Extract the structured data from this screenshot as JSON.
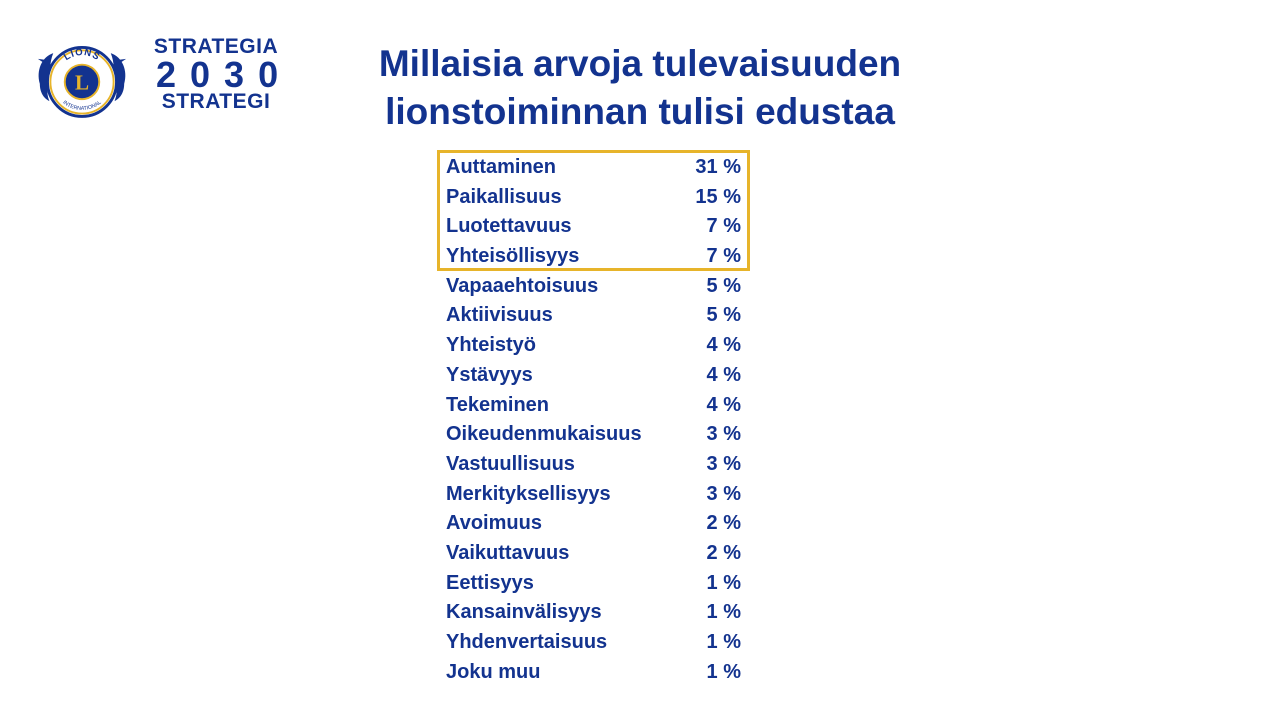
{
  "brand": {
    "logo_text_top": "LIONS",
    "logo_text_bottom": "INTERNATIONAL",
    "logo_letter": "L",
    "colors": {
      "navy": "#13338f",
      "gold": "#e7b42a"
    }
  },
  "strategy": {
    "line1": "STRATEGIA",
    "year": "2030",
    "line2": "STRATEGI"
  },
  "title": {
    "line1": "Millaisia arvoja tulevaisuuden",
    "line2": "lionstoiminnan tulisi edustaa"
  },
  "values": [
    {
      "label": "Auttaminen",
      "percent": "31 %"
    },
    {
      "label": "Paikallisuus",
      "percent": "15 %"
    },
    {
      "label": "Luotettavuus",
      "percent": "7 %"
    },
    {
      "label": "Yhteisöllisyys",
      "percent": "7 %"
    },
    {
      "label": "Vapaaehtoisuus",
      "percent": "5 %"
    },
    {
      "label": "Aktiivisuus",
      "percent": "5 %"
    },
    {
      "label": "Yhteistyö",
      "percent": "4 %"
    },
    {
      "label": "Ystävyys",
      "percent": "4 %"
    },
    {
      "label": "Tekeminen",
      "percent": "4 %"
    },
    {
      "label": "Oikeudenmukaisuus",
      "percent": "3 %"
    },
    {
      "label": "Vastuullisuus",
      "percent": "3 %"
    },
    {
      "label": "Merkityksellisyys",
      "percent": "3 %"
    },
    {
      "label": "Avoimuus",
      "percent": "2 %"
    },
    {
      "label": "Vaikuttavuus",
      "percent": "2 %"
    },
    {
      "label": "Eettisyys",
      "percent": "1 %"
    },
    {
      "label": "Kansainvälisyys",
      "percent": "1 %"
    },
    {
      "label": "Yhdenvertaisuus",
      "percent": "1 %"
    },
    {
      "label": "Joku muu",
      "percent": "1 %"
    }
  ],
  "highlighted_count": 4
}
